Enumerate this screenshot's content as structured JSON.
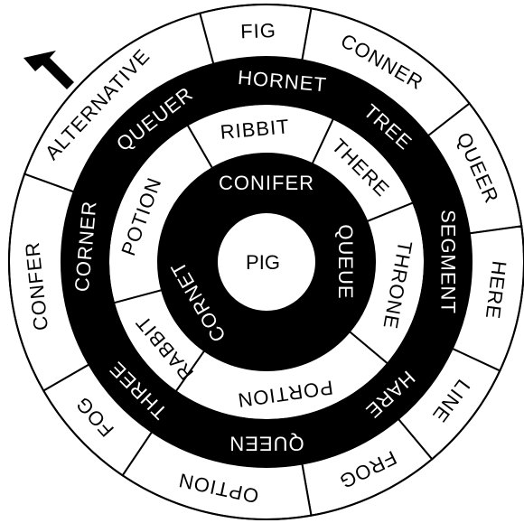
{
  "puzzle": {
    "center": "PIG",
    "colors": {
      "ink": "#000000",
      "paper": "#ffffff"
    },
    "rings": [
      {
        "name": "ring-1",
        "fill": "#000000",
        "text_color": "#ffffff",
        "segments": [
          {
            "label": "CONIFER",
            "start": -79,
            "end": 50,
            "mid": 0
          },
          {
            "label": "QUEUE",
            "start": 50,
            "end": 145,
            "mid": 90
          },
          {
            "label": "CORNET",
            "start": 145,
            "end": 281,
            "mid": 240
          }
        ]
      },
      {
        "name": "ring-2",
        "fill": "#ffffff",
        "text_color": "#000000",
        "segments": [
          {
            "label": "RIBBIT",
            "start": -30,
            "end": 25,
            "mid": -5
          },
          {
            "label": "THERE",
            "start": 25,
            "end": 68,
            "mid": 45
          },
          {
            "label": "THRONE",
            "start": 68,
            "end": 130,
            "mid": 100
          },
          {
            "label": "PORTION",
            "start": 130,
            "end": 215,
            "mid": 172
          },
          {
            "label": "RABBIT",
            "start": 215,
            "end": 255,
            "mid": 230
          },
          {
            "label": "POTION",
            "start": 255,
            "end": 330,
            "mid": 290
          }
        ]
      },
      {
        "name": "ring-3",
        "fill": "#000000",
        "text_color": "#ffffff",
        "segments": [
          {
            "label": "HORNET",
            "start": -20,
            "end": 23,
            "mid": 5
          },
          {
            "label": "TREE",
            "start": 23,
            "end": 58,
            "mid": 42
          },
          {
            "label": "SEGMENT",
            "start": 58,
            "end": 120,
            "mid": 90
          },
          {
            "label": "HARE",
            "start": 120,
            "end": 150,
            "mid": 137
          },
          {
            "label": "QUEEN",
            "start": 150,
            "end": 205,
            "mid": 180
          },
          {
            "label": "THREE",
            "start": 205,
            "end": 246,
            "mid": 225
          },
          {
            "label": "CORNER",
            "start": 246,
            "end": 305,
            "mid": 275
          },
          {
            "label": "QUEUER",
            "start": 305,
            "end": 340,
            "mid": 322
          }
        ]
      },
      {
        "name": "ring-4",
        "fill": "#ffffff",
        "text_color": "#000000",
        "segments": [
          {
            "label": "FIG",
            "start": -15,
            "end": 10,
            "mid": -2
          },
          {
            "label": "CONNER",
            "start": 10,
            "end": 52,
            "mid": 30
          },
          {
            "label": "QUEER",
            "start": 52,
            "end": 82,
            "mid": 66
          },
          {
            "label": "HERE",
            "start": 82,
            "end": 115,
            "mid": 97
          },
          {
            "label": "LINE",
            "start": 115,
            "end": 140,
            "mid": 127
          },
          {
            "label": "FROG",
            "start": 140,
            "end": 170,
            "mid": 154
          },
          {
            "label": "OPTION",
            "start": 170,
            "end": 214,
            "mid": 192
          },
          {
            "label": "FOG",
            "start": 214,
            "end": 240,
            "mid": 228
          },
          {
            "label": "CONFER",
            "start": 240,
            "end": 290,
            "mid": 264
          },
          {
            "label": "ALTERNATIVE",
            "start": 290,
            "end": 345,
            "mid": 313
          }
        ]
      }
    ],
    "start_arrow_icon": "arrow-down-right-icon"
  }
}
